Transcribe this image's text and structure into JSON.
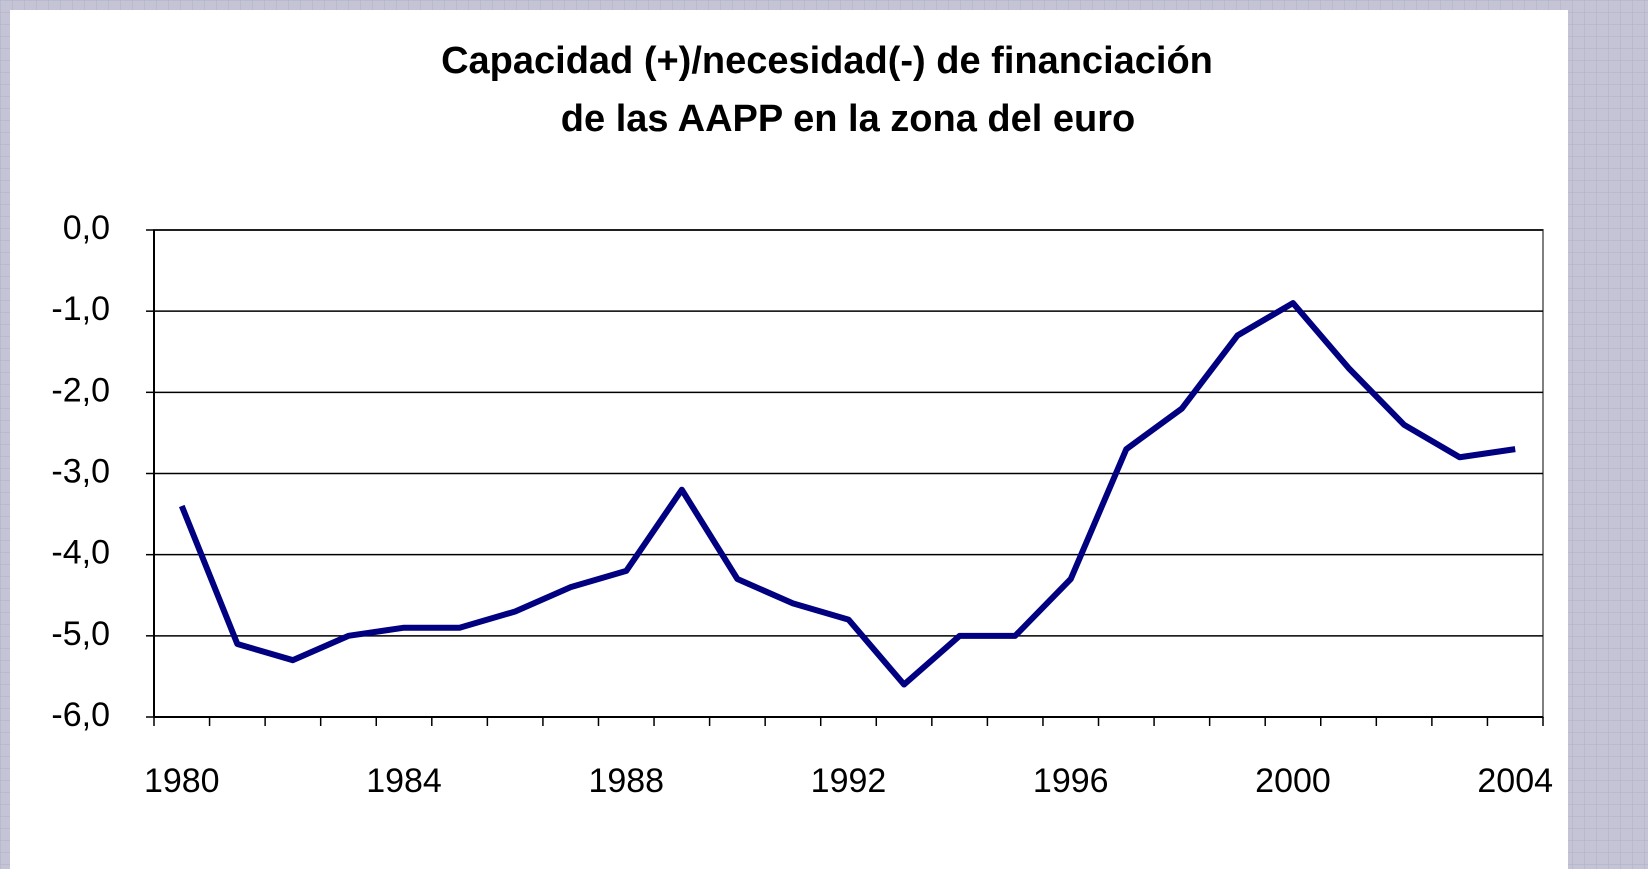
{
  "chart_data": {
    "type": "line",
    "title": [
      "Capacidad (+)/necesidad(-) de financiación",
      "de las AAPP en la zona del euro"
    ],
    "x": [
      1980,
      1981,
      1982,
      1983,
      1984,
      1985,
      1986,
      1987,
      1988,
      1989,
      1990,
      1991,
      1992,
      1993,
      1994,
      1995,
      1996,
      1997,
      1998,
      1999,
      2000,
      2001,
      2002,
      2003,
      2004
    ],
    "series": [
      {
        "color": "#000080",
        "values": [
          -3.4,
          -5.1,
          -5.3,
          -5.0,
          -4.9,
          -4.9,
          -4.7,
          -4.4,
          -4.2,
          -3.2,
          -4.3,
          -4.6,
          -4.8,
          -5.6,
          -5.0,
          -5.0,
          -4.3,
          -2.7,
          -2.2,
          -1.3,
          -0.9,
          -1.7,
          -2.4,
          -2.8,
          -2.7
        ]
      }
    ],
    "xlim": [
      1979.5,
      2004.5
    ],
    "xticks": [
      1980,
      1984,
      1988,
      1992,
      1996,
      2000,
      2004
    ],
    "ylim": [
      -6,
      0
    ],
    "yticks": [
      {
        "value": 0,
        "label": "0,0"
      },
      {
        "value": -1,
        "label": "-1,0"
      },
      {
        "value": -2,
        "label": "-2,0"
      },
      {
        "value": -3,
        "label": "-3,0"
      },
      {
        "value": -4,
        "label": "-4,0"
      },
      {
        "value": -5,
        "label": "-5,0"
      },
      {
        "value": -6,
        "label": "-6,0"
      }
    ],
    "grid": true
  }
}
